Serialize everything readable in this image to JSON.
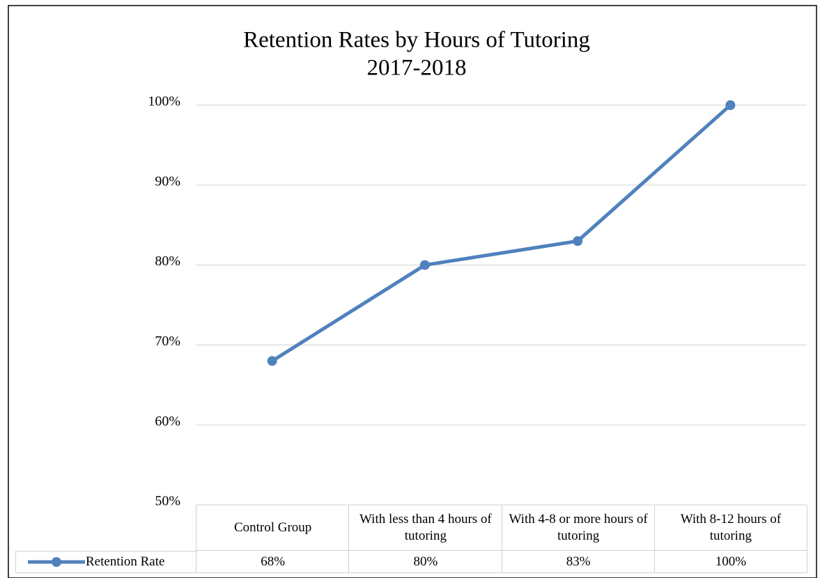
{
  "chart_data": {
    "type": "line",
    "title": "Retention Rates by Hours of Tutoring",
    "subtitle": "2017-2018",
    "categories": [
      "Control Group",
      "With less than 4 hours of tutoring",
      "With 4-8 or more hours of tutoring",
      "With 8-12 hours of tutoring"
    ],
    "series": [
      {
        "name": "Retention Rate",
        "color": "#4f81bd",
        "values": [
          68,
          80,
          83,
          100
        ],
        "value_labels": [
          "68%",
          "80%",
          "83%",
          "100%"
        ]
      }
    ],
    "ylim": [
      50,
      100
    ],
    "yticks": [
      {
        "value": 50,
        "label": "50%"
      },
      {
        "value": 60,
        "label": "60%"
      },
      {
        "value": 70,
        "label": "70%"
      },
      {
        "value": 80,
        "label": "80%"
      },
      {
        "value": 90,
        "label": "90%"
      },
      {
        "value": 100,
        "label": "100%"
      }
    ],
    "grid": true,
    "data_table": true
  }
}
